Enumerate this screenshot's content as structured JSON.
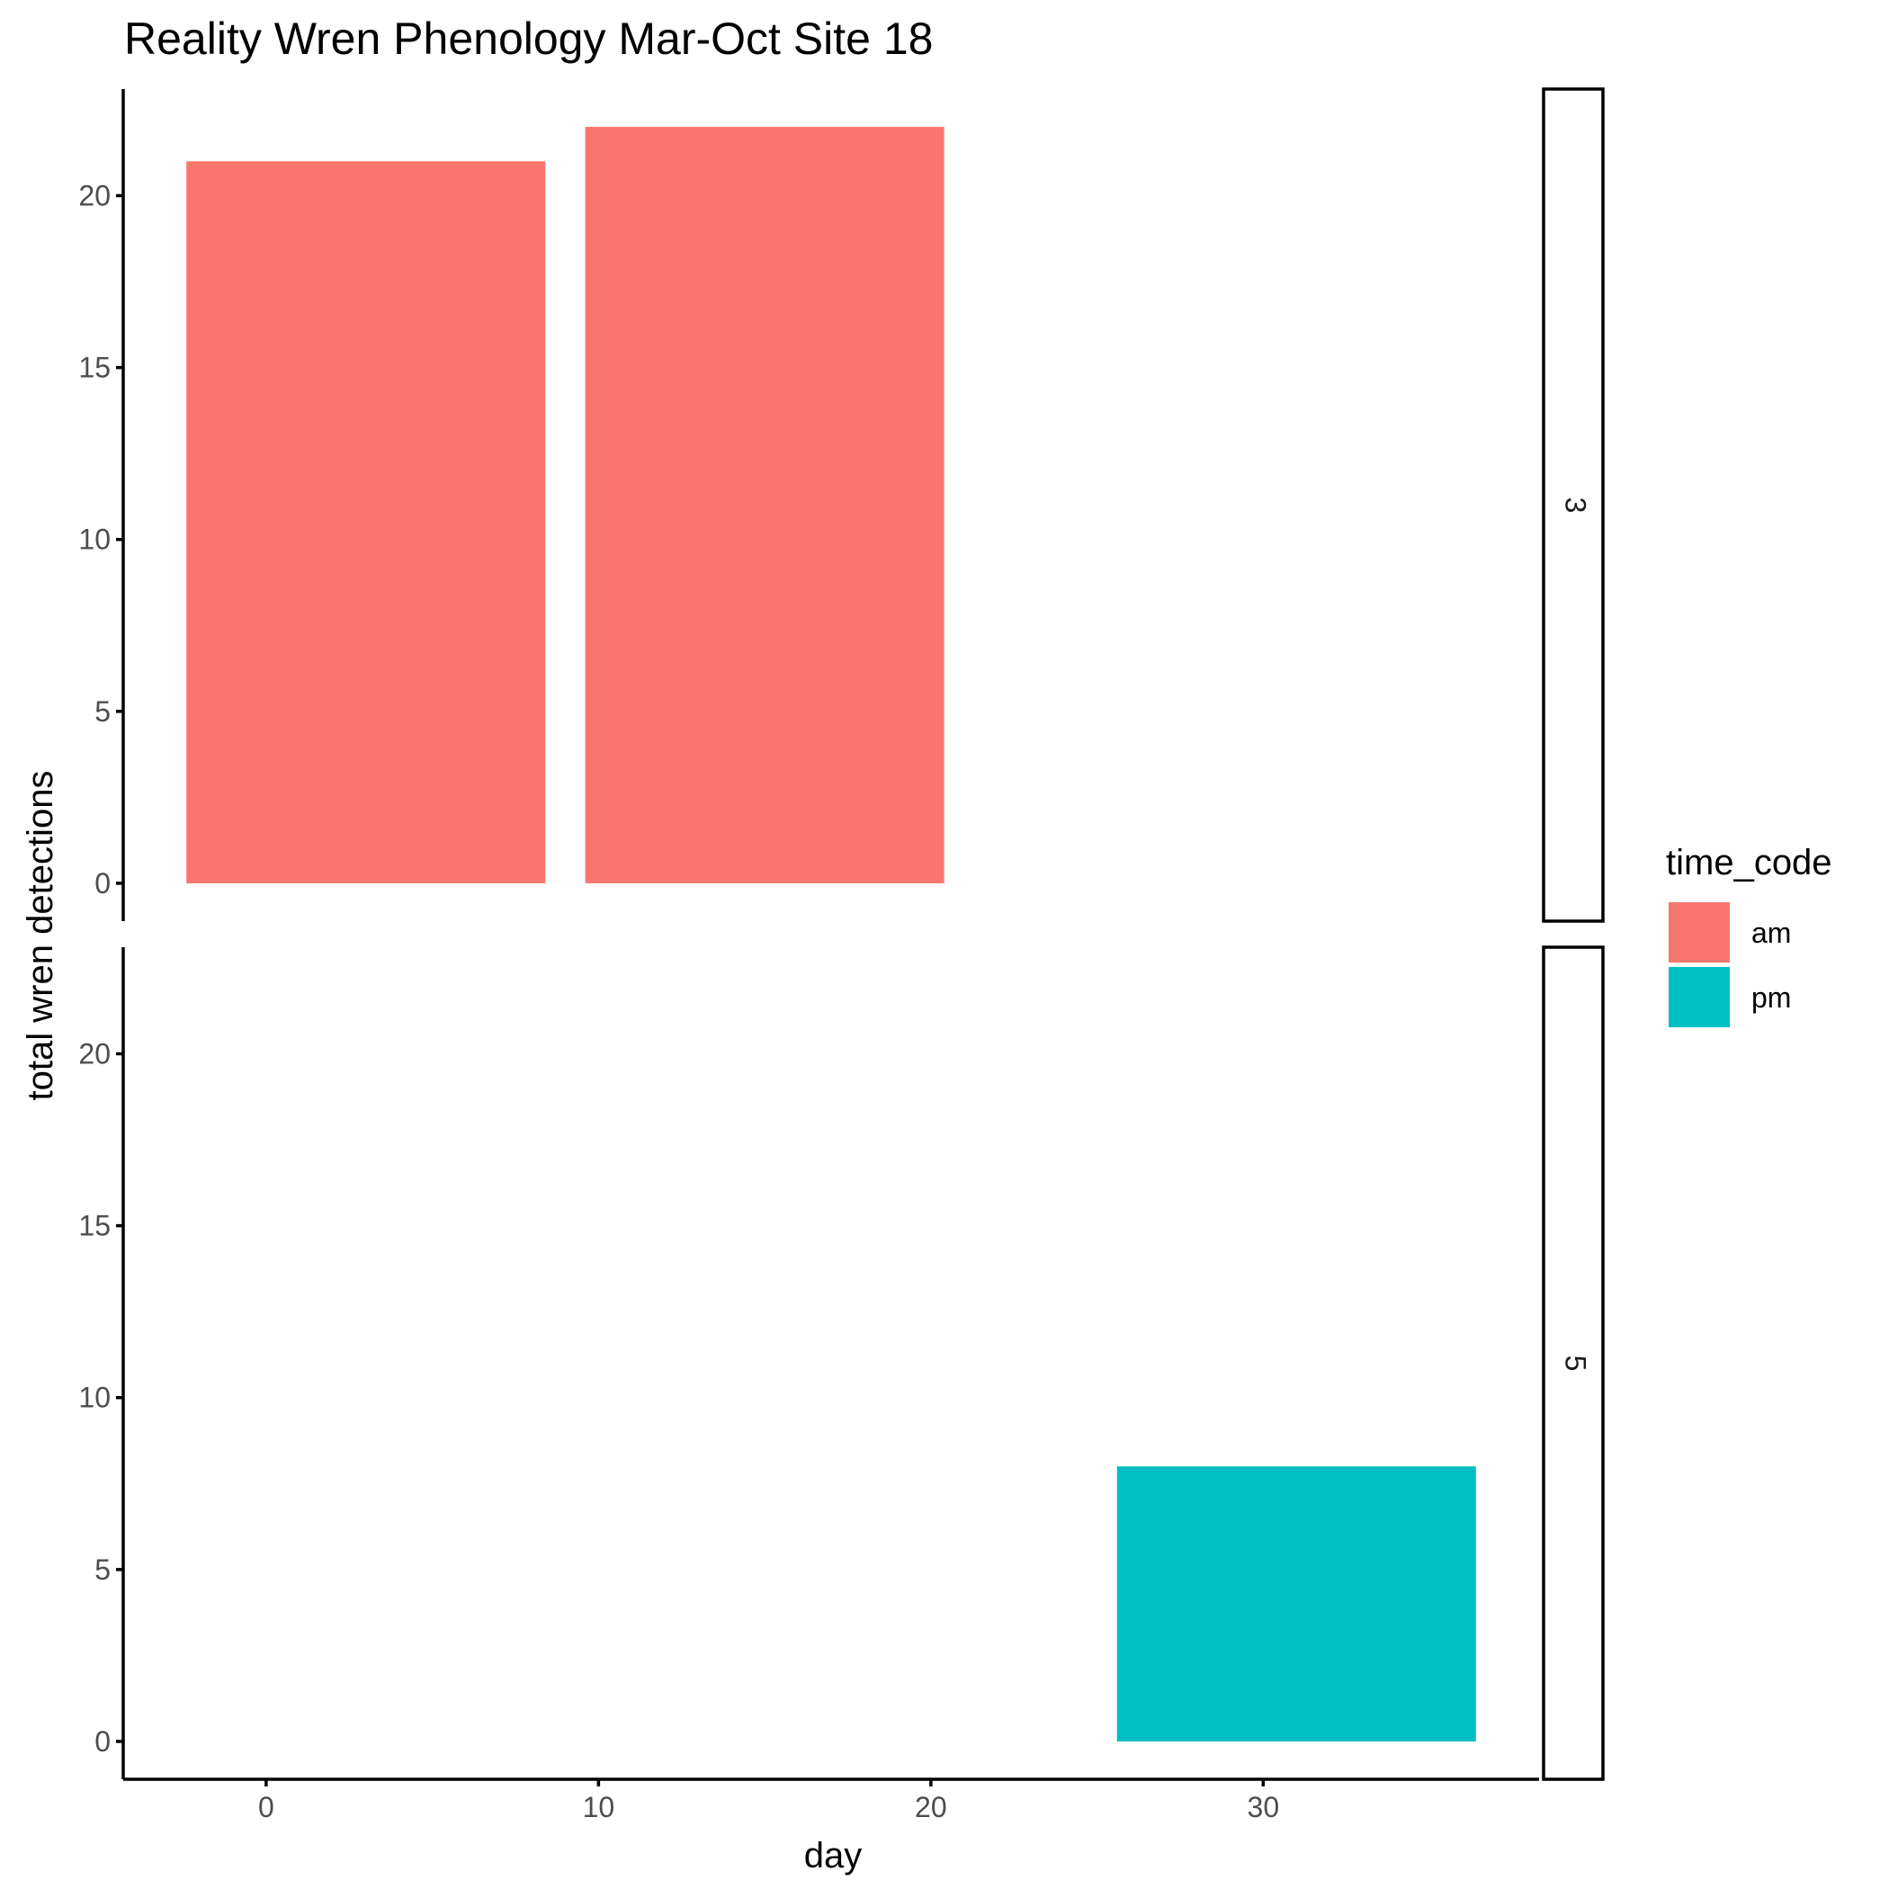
{
  "chart_data": {
    "type": "bar",
    "title": "Reality Wren Phenology Mar-Oct Site 18",
    "xlabel": "day",
    "ylabel": "total wren detections",
    "xlim": [
      -4.3,
      38.3
    ],
    "ylim": [
      -1.1,
      23.1
    ],
    "xticks": [
      0,
      10,
      20,
      30
    ],
    "yticks": [
      0,
      5,
      10,
      15,
      20
    ],
    "facets": [
      {
        "strip": "3",
        "bars": [
          {
            "x": 3,
            "width": 10.8,
            "y": 21,
            "group": "am"
          },
          {
            "x": 15,
            "width": 10.8,
            "y": 22,
            "group": "am"
          }
        ]
      },
      {
        "strip": "5",
        "bars": [
          {
            "x": 31,
            "width": 10.8,
            "y": 8,
            "group": "pm"
          }
        ]
      }
    ],
    "legend": {
      "title": "time_code",
      "position": "right",
      "items": [
        {
          "label": "am",
          "color": "#F8766D"
        },
        {
          "label": "pm",
          "color": "#00BFC4"
        }
      ]
    }
  }
}
